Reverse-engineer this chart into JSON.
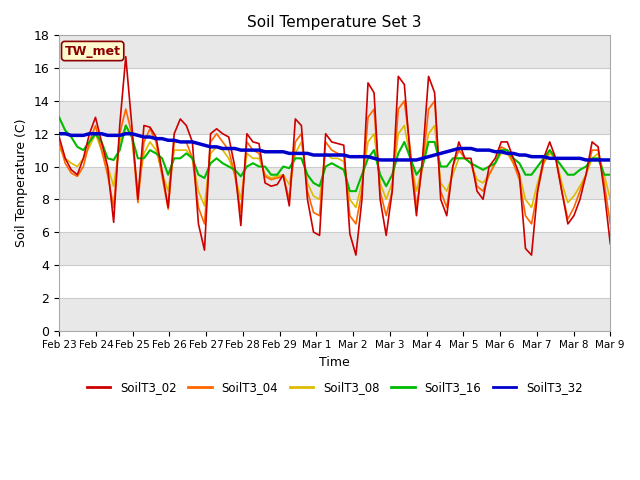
{
  "title": "Soil Temperature Set 3",
  "xlabel": "Time",
  "ylabel": "Soil Temperature (C)",
  "ylim": [
    0,
    18
  ],
  "yticks": [
    0,
    2,
    4,
    6,
    8,
    10,
    12,
    14,
    16,
    18
  ],
  "annotation_text": "TW_met",
  "annotation_color": "#8B0000",
  "annotation_bg": "#FFFACD",
  "annotation_border": "#8B0000",
  "fig_bg": "#FFFFFF",
  "plot_bg": "#FFFFFF",
  "grid_color": "#CCCCCC",
  "series_colors": {
    "SoilT3_02": "#CC0000",
    "SoilT3_04": "#FF6600",
    "SoilT3_08": "#DDBB00",
    "SoilT3_16": "#00BB00",
    "SoilT3_32": "#0000CC"
  },
  "xtick_labels": [
    "Feb 23",
    "Feb 24",
    "Feb 25",
    "Feb 26",
    "Feb 27",
    "Feb 28",
    "Feb 29",
    "Mar 1",
    "Mar 2",
    "Mar 3",
    "Mar 4",
    "Mar 5",
    "Mar 6",
    "Mar 7",
    "Mar 8",
    "Mar 9"
  ],
  "T02": [
    11.8,
    10.5,
    9.8,
    9.5,
    10.5,
    12.0,
    13.0,
    11.5,
    10.0,
    6.6,
    12.5,
    16.7,
    12.5,
    8.0,
    12.5,
    12.4,
    11.8,
    9.7,
    7.5,
    12.0,
    12.9,
    12.5,
    11.5,
    6.5,
    4.9,
    12.0,
    12.3,
    12.0,
    11.8,
    10.0,
    6.4,
    12.0,
    11.5,
    11.4,
    9.0,
    8.8,
    8.9,
    9.5,
    7.6,
    12.9,
    12.5,
    8.0,
    6.0,
    5.8,
    12.0,
    11.5,
    11.4,
    11.3,
    5.9,
    4.6,
    8.0,
    15.1,
    14.5,
    8.0,
    5.8,
    8.5,
    15.5,
    15.0,
    10.5,
    7.0,
    10.5,
    15.5,
    14.5,
    8.0,
    7.0,
    10.0,
    11.5,
    10.5,
    10.5,
    8.5,
    8.0,
    10.0,
    10.5,
    11.5,
    11.5,
    10.5,
    9.5,
    5.0,
    4.6,
    8.5,
    10.5,
    11.5,
    10.5,
    8.5,
    6.5,
    7.0,
    8.0,
    9.5,
    11.5,
    11.2,
    8.5,
    5.3
  ],
  "T04": [
    11.5,
    10.2,
    9.6,
    9.4,
    10.0,
    11.5,
    12.5,
    11.0,
    9.5,
    7.5,
    12.0,
    13.5,
    12.0,
    7.8,
    11.5,
    12.3,
    11.5,
    9.4,
    7.4,
    11.5,
    11.5,
    11.5,
    10.5,
    7.5,
    6.5,
    11.5,
    12.0,
    11.5,
    11.0,
    9.5,
    7.2,
    11.5,
    11.0,
    10.8,
    9.4,
    9.2,
    9.3,
    9.4,
    8.0,
    11.5,
    12.0,
    8.5,
    7.2,
    7.0,
    11.5,
    11.0,
    10.8,
    10.7,
    7.0,
    6.5,
    8.5,
    13.0,
    13.5,
    8.5,
    7.0,
    8.5,
    13.5,
    14.0,
    11.0,
    7.5,
    10.0,
    13.5,
    14.0,
    8.5,
    7.5,
    10.0,
    11.0,
    10.5,
    10.2,
    8.8,
    8.5,
    9.5,
    10.2,
    11.2,
    11.0,
    10.2,
    9.2,
    7.0,
    6.5,
    8.5,
    10.2,
    11.0,
    10.5,
    8.5,
    6.8,
    7.5,
    8.5,
    9.5,
    11.0,
    11.0,
    9.0,
    6.5
  ],
  "T08": [
    11.2,
    10.5,
    10.2,
    10.0,
    10.5,
    11.2,
    12.0,
    11.0,
    10.0,
    8.8,
    11.5,
    12.5,
    11.8,
    8.5,
    10.8,
    11.5,
    11.0,
    9.6,
    8.5,
    11.0,
    11.0,
    11.0,
    10.5,
    8.5,
    7.6,
    10.8,
    11.2,
    11.0,
    10.5,
    9.5,
    8.0,
    10.8,
    10.5,
    10.5,
    9.5,
    9.3,
    9.4,
    9.5,
    8.9,
    10.8,
    11.5,
    9.0,
    8.2,
    8.0,
    10.8,
    10.5,
    10.5,
    10.3,
    8.0,
    7.5,
    9.0,
    11.5,
    12.0,
    9.0,
    8.0,
    9.0,
    12.0,
    12.5,
    10.5,
    8.5,
    10.0,
    12.0,
    12.5,
    9.0,
    8.5,
    9.5,
    10.5,
    10.5,
    10.2,
    9.2,
    9.0,
    9.5,
    10.2,
    10.8,
    10.8,
    10.2,
    9.5,
    8.0,
    7.5,
    9.0,
    10.2,
    10.8,
    10.5,
    9.0,
    7.8,
    8.2,
    8.8,
    9.5,
    10.5,
    10.8,
    9.5,
    8.0
  ],
  "T16": [
    13.0,
    12.2,
    11.8,
    11.2,
    11.0,
    11.5,
    12.0,
    11.5,
    10.5,
    10.4,
    11.0,
    12.5,
    11.8,
    10.5,
    10.5,
    11.0,
    10.8,
    10.5,
    9.5,
    10.5,
    10.5,
    10.8,
    10.5,
    9.5,
    9.3,
    10.2,
    10.5,
    10.2,
    10.0,
    9.8,
    9.4,
    10.0,
    10.2,
    10.0,
    10.0,
    9.5,
    9.5,
    10.0,
    9.9,
    10.5,
    10.5,
    9.5,
    9.0,
    8.8,
    10.0,
    10.2,
    10.0,
    9.8,
    8.5,
    8.5,
    9.5,
    10.5,
    11.0,
    9.5,
    8.8,
    9.5,
    10.8,
    11.5,
    10.5,
    9.5,
    10.0,
    11.5,
    11.5,
    10.0,
    10.0,
    10.5,
    10.5,
    10.5,
    10.2,
    10.0,
    9.8,
    10.0,
    10.2,
    11.0,
    11.0,
    10.5,
    10.2,
    9.5,
    9.5,
    10.0,
    10.5,
    11.0,
    10.5,
    10.0,
    9.5,
    9.5,
    9.8,
    10.0,
    10.5,
    10.5,
    9.5,
    9.5
  ],
  "T32": [
    12.0,
    12.0,
    11.9,
    11.9,
    11.9,
    12.0,
    12.0,
    12.0,
    11.9,
    11.9,
    11.9,
    12.0,
    12.0,
    11.9,
    11.8,
    11.8,
    11.7,
    11.7,
    11.6,
    11.6,
    11.5,
    11.5,
    11.5,
    11.4,
    11.3,
    11.2,
    11.2,
    11.1,
    11.1,
    11.1,
    11.0,
    11.0,
    11.0,
    11.0,
    10.9,
    10.9,
    10.9,
    10.9,
    10.8,
    10.8,
    10.8,
    10.8,
    10.7,
    10.7,
    10.7,
    10.7,
    10.7,
    10.7,
    10.6,
    10.6,
    10.6,
    10.6,
    10.5,
    10.4,
    10.4,
    10.4,
    10.4,
    10.4,
    10.4,
    10.4,
    10.5,
    10.6,
    10.7,
    10.8,
    10.9,
    11.0,
    11.1,
    11.1,
    11.1,
    11.0,
    11.0,
    11.0,
    10.9,
    10.9,
    10.8,
    10.8,
    10.7,
    10.7,
    10.6,
    10.6,
    10.6,
    10.5,
    10.5,
    10.5,
    10.5,
    10.5,
    10.5,
    10.4,
    10.4,
    10.4,
    10.4,
    10.4
  ]
}
